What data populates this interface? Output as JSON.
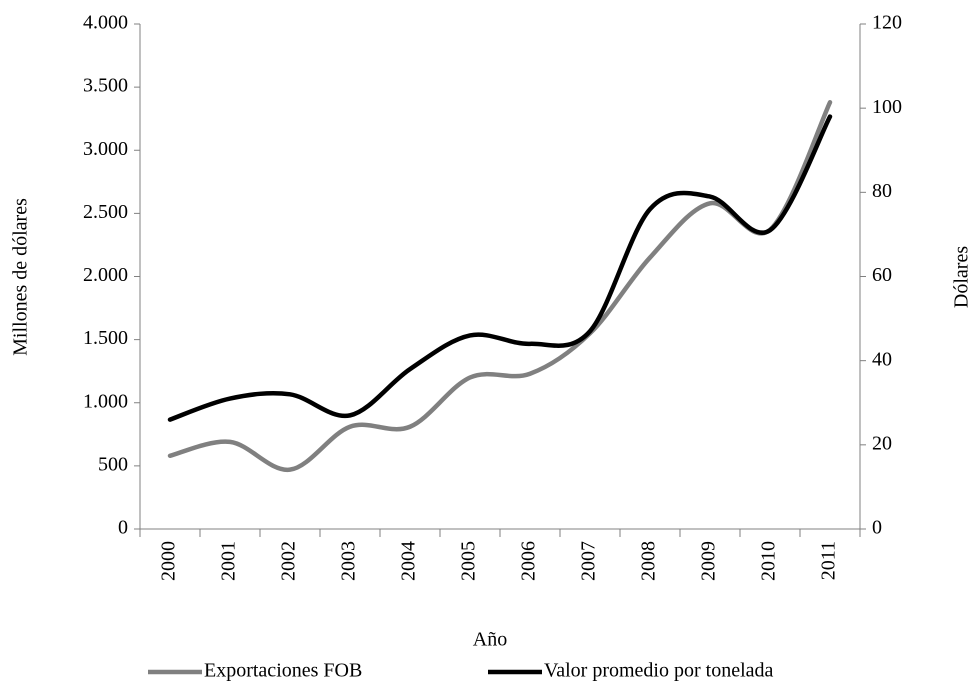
{
  "chart_data": {
    "type": "line",
    "x_label": "Año",
    "y_label": "Millones de dólares",
    "y2_label": "Dólares",
    "categories": [
      "2000",
      "2001",
      "2002",
      "2003",
      "2004",
      "2005",
      "2006",
      "2007",
      "2008",
      "2009",
      "2010",
      "2011"
    ],
    "series": [
      {
        "name": "Exportaciones FOB",
        "color": "#808080",
        "values": [
          580,
          690,
          470,
          810,
          810,
          1200,
          1230,
          1550,
          2150,
          2580,
          2370,
          3380
        ]
      },
      {
        "name": "Valor promedio por tonelada",
        "color": "#000000",
        "axis": "y2",
        "values": [
          26,
          31,
          32,
          27,
          38,
          46,
          44,
          47,
          76,
          79,
          71,
          98
        ]
      }
    ],
    "ylim": [
      0,
      4000
    ],
    "yticks": [
      0,
      500,
      {
        "value": 1000,
        "label": "1.000"
      },
      {
        "value": 1500,
        "label": "1.500"
      },
      {
        "value": 2000,
        "label": "2.000"
      },
      {
        "value": 2500,
        "label": "2.500"
      },
      {
        "value": 3000,
        "label": "3.000"
      },
      {
        "value": 3500,
        "label": "3.500"
      },
      {
        "value": 4000,
        "label": "4.000"
      }
    ],
    "y2lim": [
      0,
      120
    ],
    "y2ticks": [
      0,
      20,
      40,
      60,
      80,
      100,
      120
    ],
    "smooth": true,
    "legend": "bottom"
  }
}
